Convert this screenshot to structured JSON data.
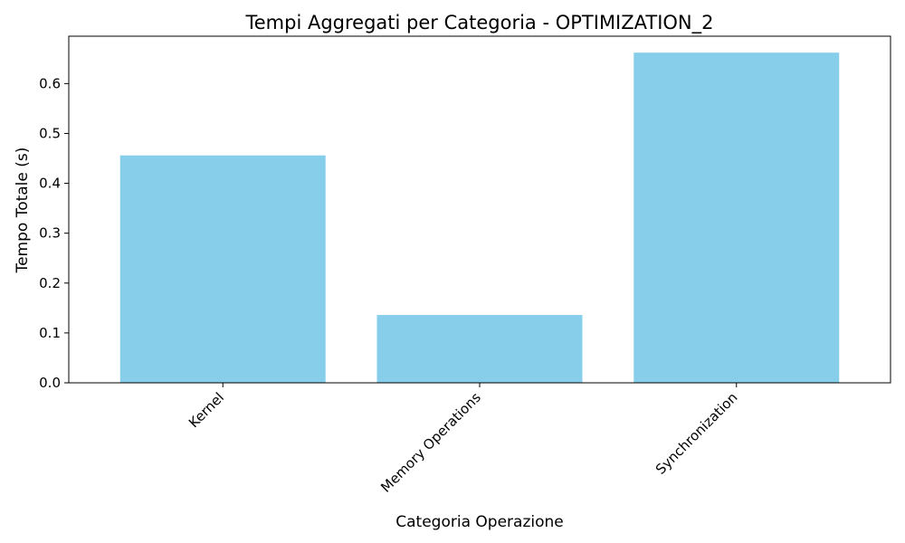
{
  "chart_data": {
    "type": "bar",
    "title": "Tempi Aggregati per Categoria - OPTIMIZATION_2",
    "xlabel": "Categoria Operazione",
    "ylabel": "Tempo Totale (s)",
    "categories": [
      "Kernel",
      "Memory Operations",
      "Synchronization"
    ],
    "values": [
      0.456,
      0.136,
      0.662
    ],
    "ylim": [
      0,
      0.695
    ],
    "yticks": [
      "0.0",
      "0.1",
      "0.2",
      "0.3",
      "0.4",
      "0.5",
      "0.6"
    ],
    "xtick_rotation": -45,
    "bar_color": "#87CEEB",
    "grid": false,
    "legend": "none"
  }
}
